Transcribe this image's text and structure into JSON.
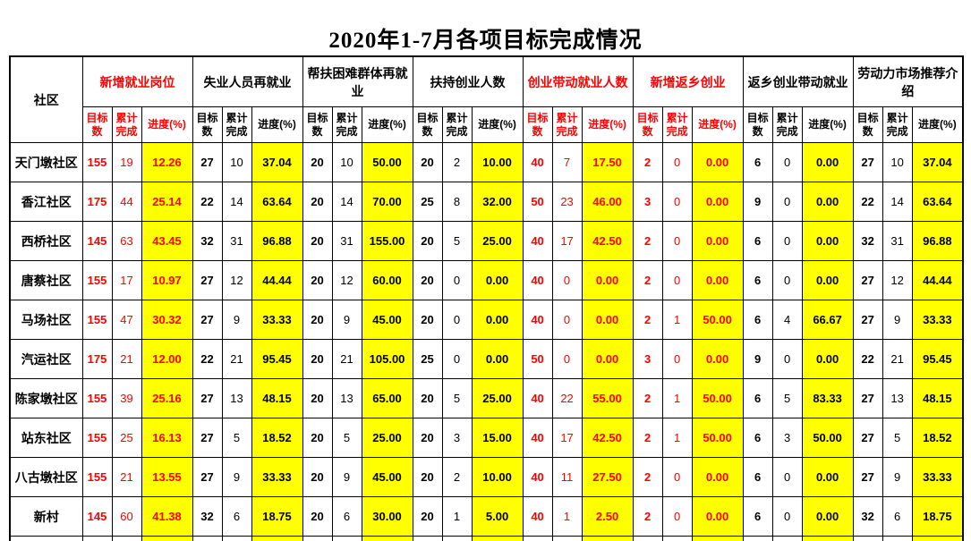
{
  "title": "2020年1-7月各项目标完成情况",
  "colors": {
    "highlight": "#FFFF00",
    "accent_red": "#FF0000",
    "grid": "#000000",
    "background": "#FFFFFF"
  },
  "table": {
    "community_header": "社区",
    "sub_headers": {
      "target": "目标\n数",
      "cumulative": "累计\n完成",
      "progress": "进度(%)"
    },
    "groups": [
      {
        "label": "新增就业岗位",
        "red": true
      },
      {
        "label": "失业人员再就业",
        "red": false
      },
      {
        "label": "帮扶困难群体再就业",
        "red": false
      },
      {
        "label": "扶持创业人数",
        "red": false
      },
      {
        "label": "创业带动就业人数",
        "red": true
      },
      {
        "label": "新增返乡创业",
        "red": true
      },
      {
        "label": "返乡创业带动就业",
        "red": false
      },
      {
        "label": "劳动力市场推荐介绍",
        "red": false
      }
    ],
    "rows": [
      {
        "community": "天门墩社区",
        "values": [
          [
            "155",
            "19",
            "12.26"
          ],
          [
            "27",
            "10",
            "37.04"
          ],
          [
            "20",
            "10",
            "50.00"
          ],
          [
            "20",
            "2",
            "10.00"
          ],
          [
            "40",
            "7",
            "17.50"
          ],
          [
            "2",
            "0",
            "0.00"
          ],
          [
            "6",
            "0",
            "0.00"
          ],
          [
            "27",
            "10",
            "37.04"
          ]
        ]
      },
      {
        "community": "香江社区",
        "values": [
          [
            "175",
            "44",
            "25.14"
          ],
          [
            "22",
            "14",
            "63.64"
          ],
          [
            "20",
            "14",
            "70.00"
          ],
          [
            "25",
            "8",
            "32.00"
          ],
          [
            "50",
            "23",
            "46.00"
          ],
          [
            "3",
            "0",
            "0.00"
          ],
          [
            "9",
            "0",
            "0.00"
          ],
          [
            "22",
            "14",
            "63.64"
          ]
        ]
      },
      {
        "community": "西桥社区",
        "values": [
          [
            "145",
            "63",
            "43.45"
          ],
          [
            "32",
            "31",
            "96.88"
          ],
          [
            "20",
            "31",
            "155.00"
          ],
          [
            "20",
            "5",
            "25.00"
          ],
          [
            "40",
            "17",
            "42.50"
          ],
          [
            "2",
            "0",
            "0.00"
          ],
          [
            "6",
            "0",
            "0.00"
          ],
          [
            "32",
            "31",
            "96.88"
          ]
        ]
      },
      {
        "community": "唐蔡社区",
        "values": [
          [
            "155",
            "17",
            "10.97"
          ],
          [
            "27",
            "12",
            "44.44"
          ],
          [
            "20",
            "12",
            "60.00"
          ],
          [
            "20",
            "0",
            "0.00"
          ],
          [
            "40",
            "0",
            "0.00"
          ],
          [
            "2",
            "0",
            "0.00"
          ],
          [
            "6",
            "0",
            "0.00"
          ],
          [
            "27",
            "12",
            "44.44"
          ]
        ]
      },
      {
        "community": "马场社区",
        "values": [
          [
            "155",
            "47",
            "30.32"
          ],
          [
            "27",
            "9",
            "33.33"
          ],
          [
            "20",
            "9",
            "45.00"
          ],
          [
            "20",
            "0",
            "0.00"
          ],
          [
            "40",
            "0",
            "0.00"
          ],
          [
            "2",
            "1",
            "50.00"
          ],
          [
            "6",
            "4",
            "66.67"
          ],
          [
            "27",
            "9",
            "33.33"
          ]
        ]
      },
      {
        "community": "汽运社区",
        "values": [
          [
            "175",
            "21",
            "12.00"
          ],
          [
            "22",
            "21",
            "95.45"
          ],
          [
            "20",
            "21",
            "105.00"
          ],
          [
            "25",
            "0",
            "0.00"
          ],
          [
            "50",
            "0",
            "0.00"
          ],
          [
            "3",
            "0",
            "0.00"
          ],
          [
            "9",
            "0",
            "0.00"
          ],
          [
            "22",
            "21",
            "95.45"
          ]
        ]
      },
      {
        "community": "陈家墩社区",
        "values": [
          [
            "155",
            "39",
            "25.16"
          ],
          [
            "27",
            "13",
            "48.15"
          ],
          [
            "20",
            "13",
            "65.00"
          ],
          [
            "20",
            "5",
            "25.00"
          ],
          [
            "40",
            "22",
            "55.00"
          ],
          [
            "2",
            "1",
            "50.00"
          ],
          [
            "6",
            "5",
            "83.33"
          ],
          [
            "27",
            "13",
            "48.15"
          ]
        ]
      },
      {
        "community": "站东社区",
        "values": [
          [
            "155",
            "25",
            "16.13"
          ],
          [
            "27",
            "5",
            "18.52"
          ],
          [
            "20",
            "5",
            "25.00"
          ],
          [
            "20",
            "3",
            "15.00"
          ],
          [
            "40",
            "17",
            "42.50"
          ],
          [
            "2",
            "1",
            "50.00"
          ],
          [
            "6",
            "3",
            "50.00"
          ],
          [
            "27",
            "5",
            "18.52"
          ]
        ]
      },
      {
        "community": "八古墩社区",
        "values": [
          [
            "155",
            "21",
            "13.55"
          ],
          [
            "27",
            "9",
            "33.33"
          ],
          [
            "20",
            "9",
            "45.00"
          ],
          [
            "20",
            "2",
            "10.00"
          ],
          [
            "40",
            "11",
            "27.50"
          ],
          [
            "2",
            "0",
            "0.00"
          ],
          [
            "6",
            "0",
            "0.00"
          ],
          [
            "27",
            "9",
            "33.33"
          ]
        ]
      },
      {
        "community": "新村",
        "values": [
          [
            "145",
            "60",
            "41.38"
          ],
          [
            "32",
            "6",
            "18.75"
          ],
          [
            "20",
            "6",
            "30.00"
          ],
          [
            "20",
            "1",
            "5.00"
          ],
          [
            "40",
            "1",
            "2.50"
          ],
          [
            "2",
            "0",
            "0.00"
          ],
          [
            "6",
            "0",
            "0.00"
          ],
          [
            "32",
            "6",
            "18.75"
          ]
        ]
      }
    ]
  }
}
